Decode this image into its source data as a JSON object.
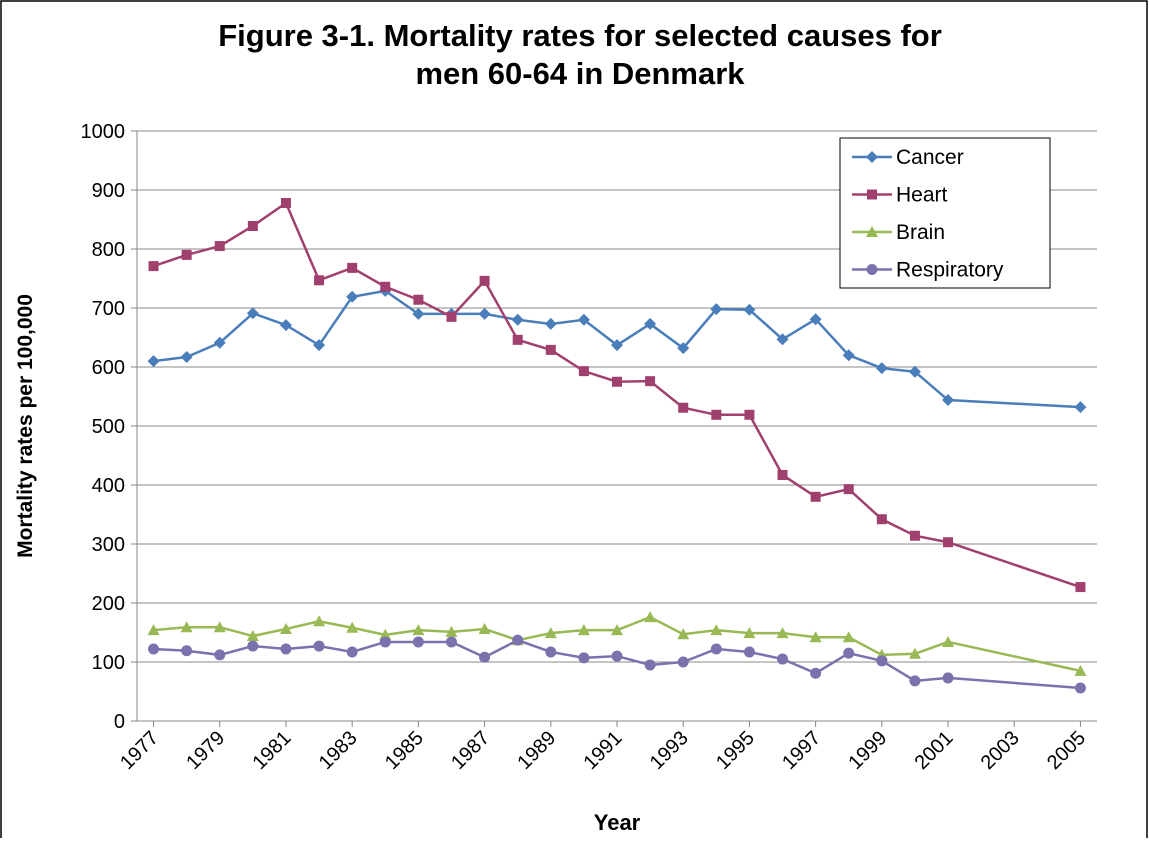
{
  "chart_data": {
    "type": "line",
    "title": "Figure 3-1.  Mortality rates for selected causes for",
    "subtitle": "men 60-64 in Denmark",
    "x_label": "Year",
    "y_label": "Mortality rates per 100,000",
    "x": [
      1977,
      1978,
      1979,
      1980,
      1981,
      1982,
      1983,
      1984,
      1985,
      1986,
      1987,
      1988,
      1989,
      1990,
      1991,
      1992,
      1993,
      1994,
      1995,
      1996,
      1997,
      1998,
      1999,
      2000,
      2001,
      2005
    ],
    "series": [
      {
        "name": "Cancer",
        "color": "#4a7ebb",
        "marker": "diamond",
        "values": [
          610,
          617,
          641,
          691,
          671,
          637,
          719,
          729,
          690,
          690,
          690,
          680,
          673,
          680,
          637,
          673,
          632,
          698,
          697,
          647,
          681,
          620,
          598,
          592,
          544,
          532
        ]
      },
      {
        "name": "Heart",
        "color": "#a0406e",
        "marker": "square",
        "values": [
          771,
          790,
          805,
          839,
          878,
          747,
          768,
          736,
          714,
          685,
          746,
          646,
          629,
          593,
          575,
          576,
          531,
          519,
          519,
          417,
          380,
          393,
          342,
          314,
          303,
          227
        ]
      },
      {
        "name": "Brain",
        "color": "#98b954",
        "marker": "triangle",
        "values": [
          154,
          159,
          159,
          144,
          156,
          169,
          158,
          146,
          154,
          151,
          156,
          137,
          149,
          154,
          154,
          176,
          147,
          154,
          149,
          149,
          142,
          142,
          112,
          114,
          134,
          85
        ]
      },
      {
        "name": "Respiratory",
        "color": "#7a72ad",
        "marker": "circle",
        "values": [
          122,
          119,
          112,
          127,
          122,
          127,
          117,
          134,
          134,
          134,
          108,
          137,
          117,
          107,
          110,
          95,
          100,
          122,
          117,
          105,
          81,
          115,
          102,
          68,
          73,
          56
        ]
      }
    ],
    "xlim": [
      1976.5,
      2005.5
    ],
    "xticks": [
      1977,
      1979,
      1981,
      1983,
      1985,
      1987,
      1989,
      1991,
      1993,
      1995,
      1997,
      1999,
      2001,
      2003,
      2005
    ],
    "ylim": [
      0,
      1000
    ],
    "yticks": [
      0,
      100,
      200,
      300,
      400,
      500,
      600,
      700,
      800,
      900,
      1000
    ],
    "grid": true,
    "legend": "upper right"
  }
}
